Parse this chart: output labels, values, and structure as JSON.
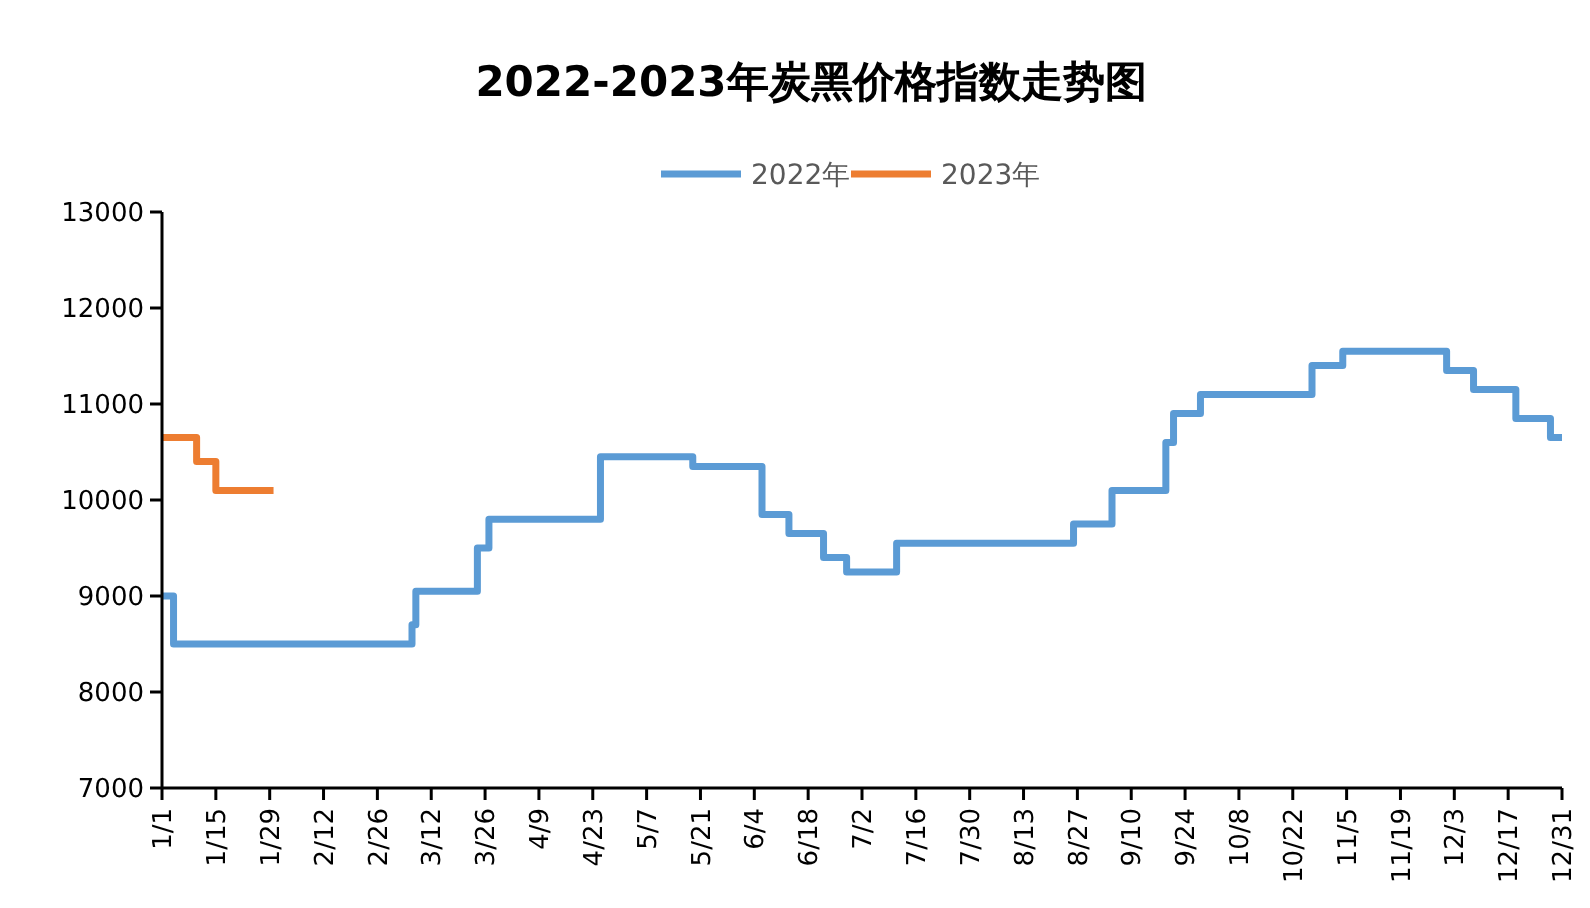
{
  "chart_data": {
    "type": "step",
    "title": "2022-2023年炭黑价格指数走势图",
    "legend": "top",
    "grid": false,
    "marker": "none",
    "line_style": "solid",
    "xlim": [
      "--01-01",
      "--12-31"
    ],
    "xticks": [
      {
        "value": "--01-01",
        "label": "1/1"
      },
      {
        "value": "--01-15",
        "label": "1/15"
      },
      {
        "value": "--01-29",
        "label": "1/29"
      },
      {
        "value": "--02-12",
        "label": "2/12"
      },
      {
        "value": "--02-26",
        "label": "2/26"
      },
      {
        "value": "--03-12",
        "label": "3/12"
      },
      {
        "value": "--03-26",
        "label": "3/26"
      },
      {
        "value": "--04-09",
        "label": "4/9"
      },
      {
        "value": "--04-23",
        "label": "4/23"
      },
      {
        "value": "--05-07",
        "label": "5/7"
      },
      {
        "value": "--05-21",
        "label": "5/21"
      },
      {
        "value": "--06-04",
        "label": "6/4"
      },
      {
        "value": "--06-18",
        "label": "6/18"
      },
      {
        "value": "--07-02",
        "label": "7/2"
      },
      {
        "value": "--07-16",
        "label": "7/16"
      },
      {
        "value": "--07-30",
        "label": "7/30"
      },
      {
        "value": "--08-13",
        "label": "8/13"
      },
      {
        "value": "--08-27",
        "label": "8/27"
      },
      {
        "value": "--09-10",
        "label": "9/10"
      },
      {
        "value": "--09-24",
        "label": "9/24"
      },
      {
        "value": "--10-08",
        "label": "10/8"
      },
      {
        "value": "--10-22",
        "label": "10/22"
      },
      {
        "value": "--11-05",
        "label": "11/5"
      },
      {
        "value": "--11-19",
        "label": "11/19"
      },
      {
        "value": "--12-03",
        "label": "12/3"
      },
      {
        "value": "--12-17",
        "label": "12/17"
      },
      {
        "value": "--12-31",
        "label": "12/31"
      }
    ],
    "ylim": [
      7000,
      13000
    ],
    "yticks": [
      7000,
      8000,
      9000,
      10000,
      11000,
      12000,
      13000
    ],
    "series": [
      {
        "name": "2022年",
        "color": "#5b9bd5",
        "x": [
          "--01-01",
          "--01-04",
          "--03-07",
          "--03-08",
          "--03-24",
          "--03-27",
          "--04-25",
          "--05-19",
          "--06-06",
          "--06-13",
          "--06-22",
          "--06-28",
          "--07-11",
          "--08-26",
          "--09-05",
          "--09-19",
          "--09-21",
          "--09-28",
          "--10-27",
          "--11-04",
          "--12-01",
          "--12-08",
          "--12-19",
          "--12-28",
          "--12-31"
        ],
        "values": [
          9000,
          8500,
          8700,
          9050,
          9500,
          9800,
          10450,
          10350,
          9850,
          9650,
          9400,
          9250,
          9550,
          9750,
          10100,
          10600,
          10900,
          11100,
          11400,
          11550,
          11350,
          11150,
          10850,
          10650,
          10650
        ]
      },
      {
        "name": "2023年",
        "color": "#ed7d31",
        "x": [
          "--01-01",
          "--01-10",
          "--01-15",
          "--01-30"
        ],
        "values": [
          10650,
          10400,
          10100,
          10100
        ]
      }
    ]
  }
}
